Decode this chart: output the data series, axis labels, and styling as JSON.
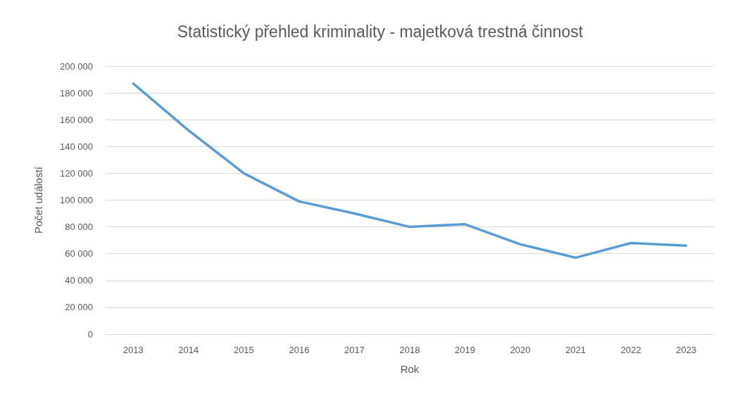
{
  "chart_data": {
    "type": "line",
    "title": "Statistický přehled kriminality - majetková trestná činnost",
    "xlabel": "Rok",
    "ylabel": "Počet událostí",
    "categories": [
      "2013",
      "2014",
      "2015",
      "2016",
      "2017",
      "2018",
      "2019",
      "2020",
      "2021",
      "2022",
      "2023"
    ],
    "series": [
      {
        "color": "#5b9bd5",
        "values": [
          187000,
          152000,
          120000,
          99000,
          90000,
          80000,
          82000,
          67000,
          57000,
          68000,
          66000
        ]
      }
    ],
    "ylim": [
      0,
      200000
    ],
    "yticks": [
      {
        "value": 0,
        "label": "0"
      },
      {
        "value": 20000,
        "label": "20 000"
      },
      {
        "value": 40000,
        "label": "40 000"
      },
      {
        "value": 60000,
        "label": "60 000"
      },
      {
        "value": 80000,
        "label": "80 000"
      },
      {
        "value": 100000,
        "label": "100 000"
      },
      {
        "value": 120000,
        "label": "120 000"
      },
      {
        "value": 140000,
        "label": "140 000"
      },
      {
        "value": 160000,
        "label": "160 000"
      },
      {
        "value": 180000,
        "label": "180 000"
      },
      {
        "value": 200000,
        "label": "200 000"
      }
    ],
    "grid": "y",
    "marker": "none",
    "line_style": "solid"
  }
}
